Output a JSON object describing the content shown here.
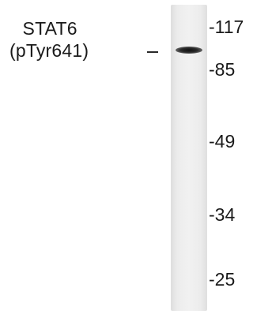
{
  "blot": {
    "target_name": "STAT6",
    "target_modification": "(pTyr641)",
    "mw_markers": [
      {
        "label": "-117",
        "kda": 117
      },
      {
        "label": "-85",
        "kda": 85
      },
      {
        "label": "-49",
        "kda": 49
      },
      {
        "label": "-34",
        "kda": 34
      },
      {
        "label": "-25",
        "kda": 25
      }
    ]
  }
}
